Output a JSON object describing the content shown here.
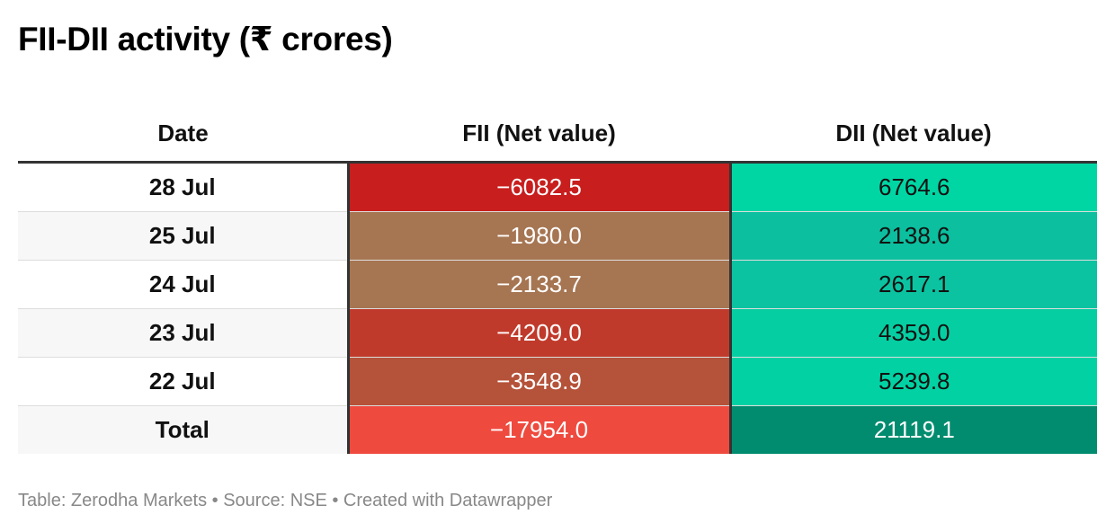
{
  "title": "FII-DII activity (₹ crores)",
  "chart_data": {
    "type": "table",
    "title": "FII-DII activity (₹ crores)",
    "columns": [
      "Date",
      "FII (Net value)",
      "DII (Net value)"
    ],
    "rows": [
      {
        "date": "28 Jul",
        "fii": "−6082.5",
        "dii": "6764.6",
        "fii_color": "#c81e1e",
        "dii_color": "#00d6a4"
      },
      {
        "date": "25 Jul",
        "fii": "−1980.0",
        "dii": "2138.6",
        "fii_color": "#a67552",
        "dii_color": "#0bbf9f"
      },
      {
        "date": "24 Jul",
        "fii": "−2133.7",
        "dii": "2617.1",
        "fii_color": "#a67552",
        "dii_color": "#0bc3a0"
      },
      {
        "date": "23 Jul",
        "fii": "−4209.0",
        "dii": "4359.0",
        "fii_color": "#c03a2b",
        "dii_color": "#05cfa2"
      },
      {
        "date": "22 Jul",
        "fii": "−3548.9",
        "dii": "5239.8",
        "fii_color": "#b5523a",
        "dii_color": "#02d2a3"
      },
      {
        "date": "Total",
        "fii": "−17954.0",
        "dii": "21119.1",
        "fii_color": "#ef4a3e",
        "dii_color": "#018c6f",
        "dii_light_text": true
      }
    ]
  },
  "footer": "Table: Zerodha Markets • Source: NSE • Created with Datawrapper"
}
